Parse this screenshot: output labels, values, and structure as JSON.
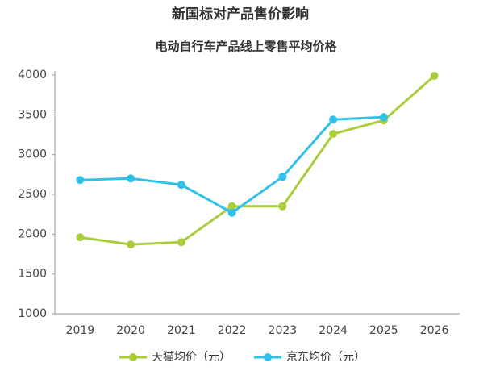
{
  "chart_data": {
    "type": "line",
    "title": "新国标对产品售价影响",
    "subtitle": "电动自行车产品线上零售平均价格",
    "categories": [
      "2019",
      "2020",
      "2021",
      "2022",
      "2023",
      "2024",
      "2025",
      "2026"
    ],
    "series": [
      {
        "name": "天猫均价（元）",
        "color": "#a9cd3b",
        "values": [
          1960,
          1870,
          1900,
          2350,
          2350,
          3260,
          3430,
          3990
        ]
      },
      {
        "name": "京东均价（元）",
        "color": "#2fc1e9",
        "values": [
          2680,
          2700,
          2620,
          2270,
          2720,
          3440,
          3470,
          null
        ]
      }
    ],
    "ylim": [
      1000,
      4000
    ],
    "yticks": [
      1000,
      1500,
      2000,
      2500,
      3000,
      3500,
      4000
    ],
    "grid": false,
    "legend": "bottom"
  }
}
